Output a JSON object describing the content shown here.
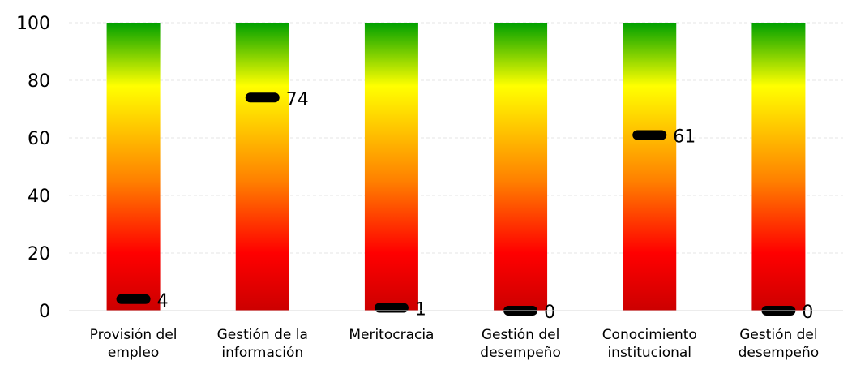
{
  "chart_data": {
    "type": "bar",
    "title": "",
    "xlabel": "",
    "ylabel": "",
    "ylim": [
      0,
      100
    ],
    "yticks": [
      0,
      20,
      40,
      60,
      80,
      100
    ],
    "grid": true,
    "categories": [
      [
        "Provisión del",
        "empleo"
      ],
      [
        "Gestión de la",
        "información"
      ],
      [
        "Meritocracia"
      ],
      [
        "Gestión del",
        "desempeño"
      ],
      [
        "Conocimiento",
        "institucional"
      ],
      [
        "Gestión del",
        "desempeño"
      ]
    ],
    "values": [
      4,
      74,
      1,
      0,
      61,
      0
    ],
    "value_labels": [
      "4",
      "74",
      "1",
      "0",
      "61",
      "0"
    ],
    "bar_gradient": {
      "top": "#00a000",
      "upper": "#ffff00",
      "middle": "#ff8000",
      "lower": "#ff0000",
      "bottom": "#cc0000"
    },
    "marker_color": "#000000"
  }
}
